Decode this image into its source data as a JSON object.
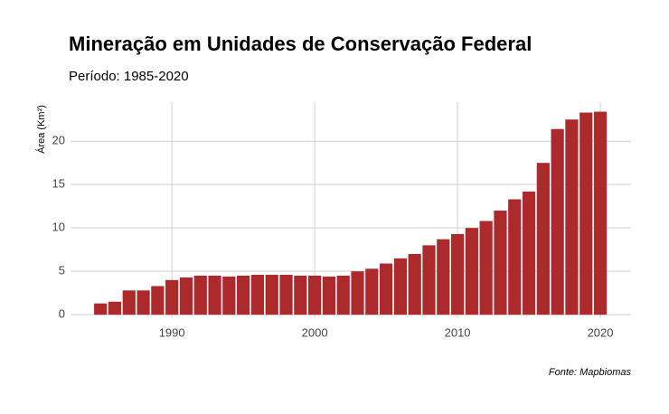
{
  "chart_data": {
    "type": "bar",
    "title": "Mineração em Unidades de Conservação Federal",
    "subtitle": "Período: 1985-2020",
    "y_label": "Área (Km²)",
    "caption": "Fonte: Mapbiomas",
    "x": [
      1985,
      1986,
      1987,
      1988,
      1989,
      1990,
      1991,
      1992,
      1993,
      1994,
      1995,
      1996,
      1997,
      1998,
      1999,
      2000,
      2001,
      2002,
      2003,
      2004,
      2005,
      2006,
      2007,
      2008,
      2009,
      2010,
      2011,
      2012,
      2013,
      2014,
      2015,
      2016,
      2017,
      2018,
      2019,
      2020
    ],
    "values": [
      1.3,
      1.5,
      2.8,
      2.8,
      3.3,
      4.0,
      4.3,
      4.5,
      4.5,
      4.4,
      4.5,
      4.6,
      4.6,
      4.6,
      4.5,
      4.5,
      4.4,
      4.5,
      5.0,
      5.3,
      5.9,
      6.5,
      7.0,
      8.0,
      8.7,
      9.3,
      10.0,
      10.8,
      12.0,
      13.3,
      14.2,
      17.5,
      21.4,
      22.5,
      23.3,
      23.4
    ],
    "color": "#ad2a2c",
    "xlim": [
      1982.9,
      2022.15
    ],
    "xticks": [
      1990,
      2000,
      2010,
      2020
    ],
    "ylim": [
      -0.4,
      24.5
    ],
    "yticks": [
      0,
      5,
      10,
      15,
      20
    ],
    "grid": true
  }
}
